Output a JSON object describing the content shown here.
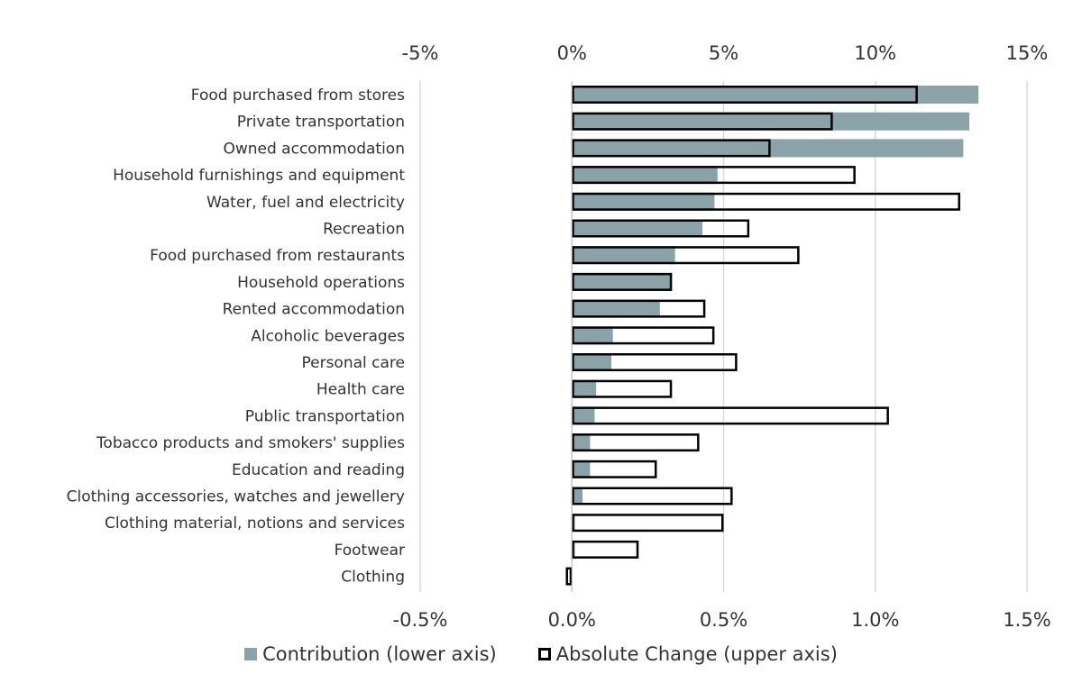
{
  "chart_data": {
    "type": "bar",
    "orientation": "horizontal",
    "categories": [
      "Food purchased from stores",
      "Private transportation",
      "Owned accommodation",
      "Household furnishings and equipment",
      "Water, fuel and electricity",
      "Recreation",
      "Food purchased from restaurants",
      "Household operations",
      "Rented accommodation",
      "Alcoholic beverages",
      "Personal care",
      "Health care",
      "Public transportation",
      "Tobacco products and smokers' supplies",
      "Education and reading",
      "Clothing accessories, watches and jewellery",
      "Clothing material, notions and services",
      "Footwear",
      "Clothing"
    ],
    "series": [
      {
        "name": "Contribution (lower axis)",
        "axis": "lower",
        "style": "filled",
        "color": "#8aa2a8",
        "values": [
          1.34,
          1.31,
          1.29,
          0.48,
          0.47,
          0.43,
          0.34,
          0.33,
          0.29,
          0.135,
          0.13,
          0.08,
          0.075,
          0.06,
          0.06,
          0.035,
          0.01,
          0.01,
          -0.002
        ]
      },
      {
        "name": "Absolute Change (upper axis)",
        "axis": "upper",
        "style": "outline",
        "color": "#000000",
        "values": [
          11.4,
          8.6,
          6.55,
          9.35,
          12.8,
          5.85,
          7.5,
          3.3,
          4.4,
          4.7,
          5.45,
          3.3,
          10.45,
          4.2,
          2.8,
          5.3,
          5.0,
          2.2,
          -0.2
        ]
      }
    ],
    "upper_axis": {
      "ticks": [
        "-5%",
        "0%",
        "5%",
        "10%",
        "15%"
      ],
      "values": [
        -5,
        0,
        5,
        10,
        15
      ],
      "range": [
        -5,
        15
      ]
    },
    "lower_axis": {
      "ticks": [
        "-0.5%",
        "0.0%",
        "0.5%",
        "1.0%",
        "1.5%"
      ],
      "values": [
        -0.5,
        0,
        0.5,
        1.0,
        1.5
      ],
      "range": [
        -0.5,
        1.5
      ]
    },
    "gridlines": true,
    "legend_position": "bottom",
    "title": "",
    "xlabel": "",
    "ylabel": ""
  },
  "legend": {
    "contribution_label": "Contribution (lower axis)",
    "absolute_label": "Absolute Change (upper axis)"
  },
  "colors": {
    "fill": "#8aa2a8",
    "outline": "#000000",
    "grid": "#d9d9d9",
    "text": "#333333"
  }
}
